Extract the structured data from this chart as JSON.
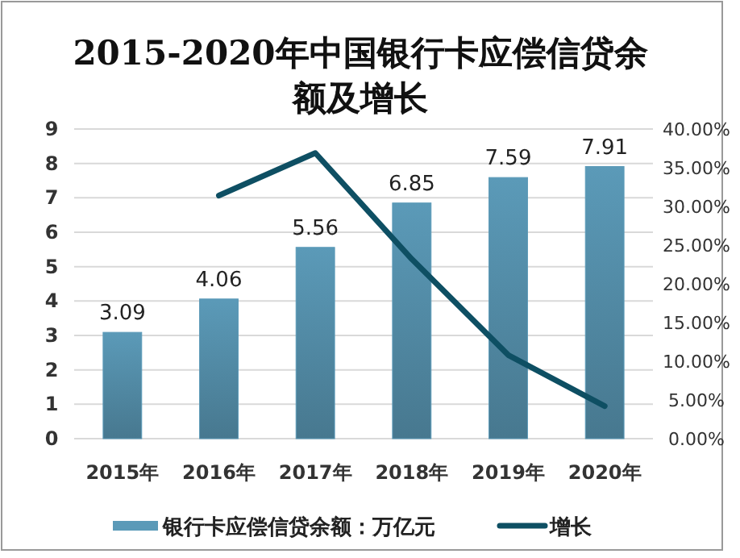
{
  "chart_data": {
    "type": "bar",
    "title": "2015-2020年中国银行卡应偿信贷余额及增长",
    "categories": [
      "2015年",
      "2016年",
      "2017年",
      "2018年",
      "2019年",
      "2020年"
    ],
    "series": [
      {
        "name": "银行卡应偿信贷余额：万亿元",
        "color": "#5b9ab8",
        "values": [
          3.09,
          4.06,
          5.56,
          6.85,
          7.59,
          7.91
        ],
        "value_labels": [
          "3.09",
          "4.06",
          "5.56",
          "6.85",
          "7.59",
          "7.91"
        ]
      },
      {
        "name": "增长",
        "type": "line",
        "axis": "y2",
        "color": "#0e4f63",
        "values": [
          null,
          31.4,
          36.9,
          23.2,
          10.8,
          4.2
        ]
      }
    ],
    "ylim": [
      0,
      9
    ],
    "yticks": [
      0,
      1,
      2,
      3,
      4,
      5,
      6,
      7,
      8,
      9
    ],
    "y2lim": [
      0,
      40
    ],
    "y2ticks": [
      {
        "value": 0,
        "label": "0.00%"
      },
      {
        "value": 5,
        "label": "5.00%"
      },
      {
        "value": 10,
        "label": "10.00%"
      },
      {
        "value": 15,
        "label": "15.00%"
      },
      {
        "value": 20,
        "label": "20.00%"
      },
      {
        "value": 25,
        "label": "25.00%"
      },
      {
        "value": 30,
        "label": "30.00%"
      },
      {
        "value": 35,
        "label": "35.00%"
      },
      {
        "value": 40,
        "label": "40.00%"
      }
    ],
    "grid": "y",
    "legend": "bottom",
    "marker": "none",
    "line_style": "solid"
  }
}
